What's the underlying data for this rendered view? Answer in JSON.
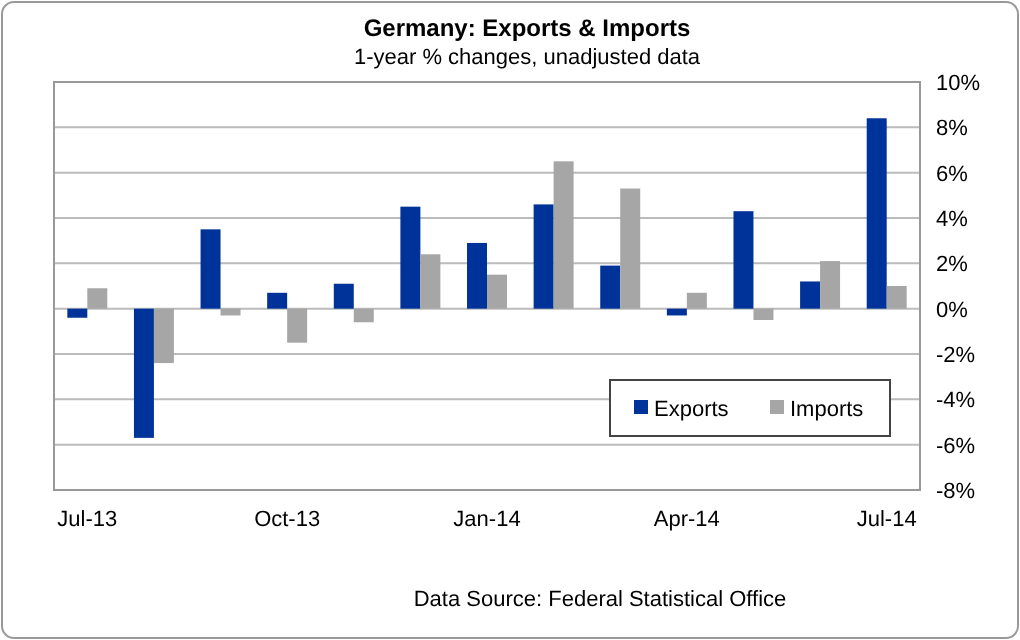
{
  "chart_data": {
    "type": "bar",
    "title": "Germany: Exports & Imports",
    "subtitle": "1-year % changes, unadjusted data",
    "categories": [
      "Jul-13",
      null,
      null,
      "Oct-13",
      null,
      null,
      "Jan-14",
      null,
      null,
      "Apr-14",
      null,
      null,
      "Jul-14"
    ],
    "series": [
      {
        "name": "Exports",
        "color": "#003399",
        "values": [
          -0.4,
          -5.7,
          3.5,
          0.7,
          1.1,
          4.5,
          2.9,
          4.6,
          1.9,
          -0.3,
          4.3,
          1.2,
          8.4
        ]
      },
      {
        "name": "Imports",
        "color": "#a6a6a6",
        "values": [
          0.9,
          -2.4,
          -0.3,
          -1.5,
          -0.6,
          2.4,
          1.5,
          6.5,
          5.3,
          0.7,
          -0.5,
          2.1,
          1.0
        ]
      }
    ],
    "ylim": [
      -8,
      10
    ],
    "yticks": [
      {
        "value": -8,
        "label": "-8%"
      },
      {
        "value": -6,
        "label": "-6%"
      },
      {
        "value": -4,
        "label": "-4%"
      },
      {
        "value": -2,
        "label": "-2%"
      },
      {
        "value": 0,
        "label": "0%"
      },
      {
        "value": 2,
        "label": "2%"
      },
      {
        "value": 4,
        "label": "4%"
      },
      {
        "value": 6,
        "label": "6%"
      },
      {
        "value": 8,
        "label": "8%"
      },
      {
        "value": 10,
        "label": "10%"
      }
    ],
    "grid": "y",
    "legend": "bottom right",
    "annotations": [
      "Data Source: Federal Statistical Office"
    ]
  }
}
